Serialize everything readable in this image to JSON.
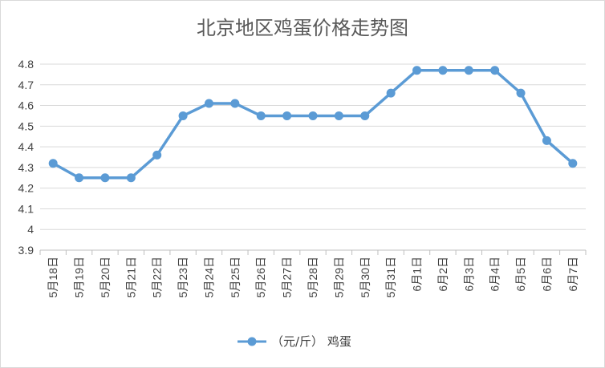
{
  "chart_data": {
    "type": "line",
    "title": "北京地区鸡蛋价格走势图",
    "xlabel": "",
    "ylabel": "",
    "ylim": [
      3.9,
      4.8
    ],
    "yticks": [
      "3.9",
      "4",
      "4.1",
      "4.2",
      "4.3",
      "4.4",
      "4.5",
      "4.6",
      "4.7",
      "4.8"
    ],
    "grid": true,
    "legend_position": "bottom",
    "categories": [
      "5月18日",
      "5月19日",
      "5月20日",
      "5月21日",
      "5月22日",
      "5月23日",
      "5月24日",
      "5月25日",
      "5月26日",
      "5月27日",
      "5月28日",
      "5月29日",
      "5月30日",
      "5月31日",
      "6月1日",
      "6月2日",
      "6月3日",
      "6月4日",
      "6月5日",
      "6月6日",
      "6月7日"
    ],
    "series": [
      {
        "name": "（元/斤） 鸡蛋",
        "color": "#5b9bd5",
        "values": [
          4.32,
          4.25,
          4.25,
          4.25,
          4.36,
          4.55,
          4.61,
          4.61,
          4.55,
          4.55,
          4.55,
          4.55,
          4.55,
          4.66,
          4.77,
          4.77,
          4.77,
          4.77,
          4.66,
          4.43,
          4.32
        ]
      }
    ]
  }
}
